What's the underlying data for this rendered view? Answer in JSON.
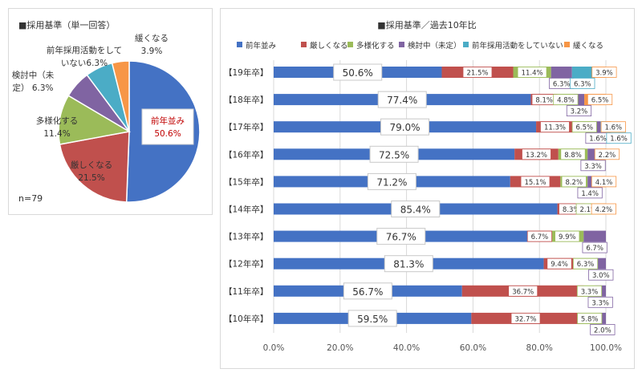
{
  "chart_data": [
    {
      "type": "pie",
      "title": "■採用基準（単一回答）",
      "note": "n=79",
      "slices": [
        {
          "name": "前年並み",
          "value": 50.6,
          "label": "前年並み",
          "value_label": "50.6%",
          "color": "#4472c4",
          "text_color": "#c00000"
        },
        {
          "name": "厳しくなる",
          "value": 21.5,
          "label": "厳しくなる",
          "value_label": "21.5%",
          "color": "#c0504d",
          "text_color": "#333333"
        },
        {
          "name": "多様化する",
          "value": 11.4,
          "label": "多様化する",
          "value_label": "11.4%",
          "color": "#9bbb59",
          "text_color": "#333333"
        },
        {
          "name": "検討中（未定）",
          "value": 6.3,
          "label": "検討中（未\n定） 6.3%",
          "value_label": "",
          "color": "#8064a2",
          "text_color": "#333333"
        },
        {
          "name": "前年採用活動をしていない",
          "value": 6.3,
          "label": "前年採用活動をして\nいない6.3%",
          "value_label": "",
          "color": "#4bacc6",
          "text_color": "#333333"
        },
        {
          "name": "緩くなる",
          "value": 3.9,
          "label": "緩くなる\n3.9%",
          "value_label": "",
          "color": "#f79646",
          "text_color": "#333333"
        }
      ]
    },
    {
      "type": "bar",
      "orientation": "horizontal",
      "stacked": true,
      "title": "■採用基準／過去10年比",
      "xlim": [
        0,
        100
      ],
      "x_ticks": [
        "0.0%",
        "20.0%",
        "40.0%",
        "60.0%",
        "80.0%",
        "100.0%"
      ],
      "categories": [
        "【19年卒】",
        "【18年卒】",
        "【17年卒】",
        "【16年卒】",
        "【15年卒】",
        "【14年卒】",
        "【13年卒】",
        "【12年卒】",
        "【11年卒】",
        "【10年卒】"
      ],
      "series": [
        {
          "name": "前年並み",
          "color": "#4472c4",
          "values": [
            50.6,
            77.4,
            79.0,
            72.5,
            71.2,
            85.4,
            76.7,
            81.3,
            56.7,
            59.5
          ]
        },
        {
          "name": "厳しくなる",
          "color": "#c0504d",
          "values": [
            21.5,
            8.1,
            11.3,
            13.2,
            15.1,
            8.3,
            6.7,
            9.4,
            36.7,
            32.7
          ]
        },
        {
          "name": "多様化する",
          "color": "#9bbb59",
          "values": [
            11.4,
            4.8,
            6.5,
            8.8,
            8.2,
            2.1,
            9.9,
            6.3,
            3.3,
            5.8
          ]
        },
        {
          "name": "検討中（未定）",
          "color": "#8064a2",
          "values": [
            6.3,
            3.2,
            1.6,
            3.3,
            1.4,
            0.0,
            6.7,
            3.0,
            3.3,
            2.0
          ]
        },
        {
          "name": "前年採用活動をしていない",
          "color": "#4bacc6",
          "values": [
            6.3,
            0.0,
            1.6,
            0.0,
            0.0,
            0.0,
            0.0,
            0.0,
            0.0,
            0.0
          ]
        },
        {
          "name": "緩くなる",
          "color": "#f79646",
          "values": [
            3.9,
            6.5,
            1.6,
            2.2,
            4.1,
            4.2,
            0.0,
            0.0,
            0.0,
            0.0
          ]
        }
      ],
      "data_labels": [
        [
          [
            "50.6%",
            0
          ],
          [
            "21.5%",
            1
          ],
          [
            "11.4%",
            2
          ],
          [
            "6.3%",
            3
          ],
          [
            "6.3%",
            4
          ],
          [
            "3.9%",
            5
          ]
        ],
        [
          [
            "77.4%",
            0
          ],
          [
            "8.1%",
            1
          ],
          [
            "4.8%",
            2
          ],
          [
            "3.2%",
            3
          ],
          [
            "6.5%",
            5
          ]
        ],
        [
          [
            "79.0%",
            0
          ],
          [
            "11.3%",
            1
          ],
          [
            "6.5%",
            2
          ],
          [
            "1.6%",
            3
          ],
          [
            "1.6%",
            4
          ],
          [
            "1.6%",
            5
          ]
        ],
        [
          [
            "72.5%",
            0
          ],
          [
            "13.2%",
            1
          ],
          [
            "8.8%",
            2
          ],
          [
            "3.3%",
            3
          ],
          [
            "2.2%",
            5
          ]
        ],
        [
          [
            "71.2%",
            0
          ],
          [
            "15.1%",
            1
          ],
          [
            "8.2%",
            2
          ],
          [
            "1.4%",
            3
          ],
          [
            "4.1%",
            5
          ]
        ],
        [
          [
            "85.4%",
            0
          ],
          [
            "8.3%",
            1
          ],
          [
            "2.1%",
            2
          ],
          [
            "4.2%",
            5
          ]
        ],
        [
          [
            "76.7%",
            0
          ],
          [
            "6.7%",
            1
          ],
          [
            "9.9%",
            2
          ],
          [
            "6.7%",
            3
          ]
        ],
        [
          [
            "81.3%",
            0
          ],
          [
            "9.4%",
            1
          ],
          [
            "6.3%",
            2
          ],
          [
            "3.0%",
            3
          ]
        ],
        [
          [
            "56.7%",
            0
          ],
          [
            "36.7%",
            1
          ],
          [
            "3.3%",
            2
          ],
          [
            "3.3%",
            3
          ]
        ],
        [
          [
            "59.5%",
            0
          ],
          [
            "32.7%",
            1
          ],
          [
            "5.8%",
            2
          ],
          [
            "2.0%",
            3
          ]
        ]
      ],
      "legend_position": "top",
      "grid": true
    }
  ]
}
